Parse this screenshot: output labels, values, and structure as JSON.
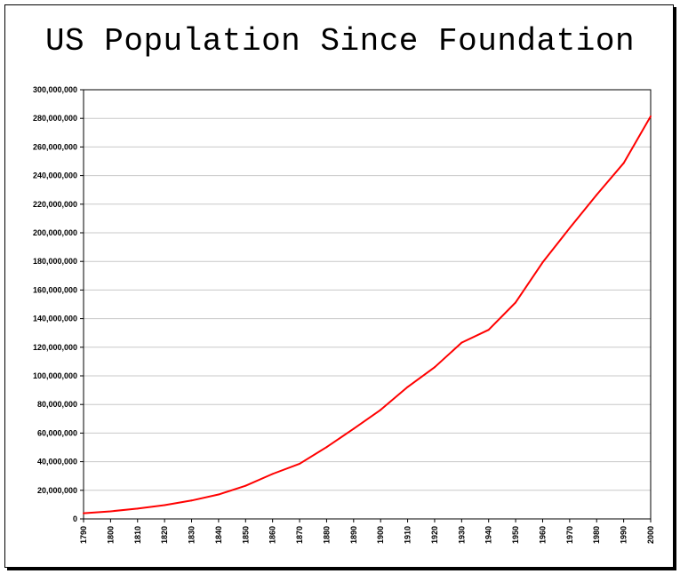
{
  "chart_data": {
    "type": "line",
    "title": "US Population Since Foundation",
    "xlabel": "",
    "ylabel": "",
    "x": [
      1790,
      1800,
      1810,
      1820,
      1830,
      1840,
      1850,
      1860,
      1870,
      1880,
      1890,
      1900,
      1910,
      1920,
      1930,
      1940,
      1950,
      1960,
      1970,
      1980,
      1990,
      2000
    ],
    "series": [
      {
        "values": [
          3929214,
          5308483,
          7239881,
          9638453,
          12860702,
          17063353,
          23191876,
          31443321,
          38558371,
          50189209,
          62979766,
          76212168,
          92228496,
          106021537,
          123202624,
          132164569,
          151325798,
          179323175,
          203302031,
          226542199,
          248709873,
          281421906
        ],
        "color": "#ff0000"
      }
    ],
    "x_ticks": [
      "1790",
      "1800",
      "1810",
      "1820",
      "1830",
      "1840",
      "1850",
      "1860",
      "1870",
      "1880",
      "1890",
      "1900",
      "1910",
      "1920",
      "1930",
      "1940",
      "1950",
      "1960",
      "1970",
      "1980",
      "1990",
      "2000"
    ],
    "y_ticks": [
      "0",
      "20,000,000",
      "40,000,000",
      "60,000,000",
      "80,000,000",
      "100,000,000",
      "120,000,000",
      "140,000,000",
      "160,000,000",
      "180,000,000",
      "200,000,000",
      "220,000,000",
      "240,000,000",
      "260,000,000",
      "280,000,000",
      "300,000,000"
    ],
    "ylim": [
      0,
      300000000
    ],
    "xlim": [
      1790,
      2000
    ],
    "grid": true,
    "legend": "none"
  }
}
